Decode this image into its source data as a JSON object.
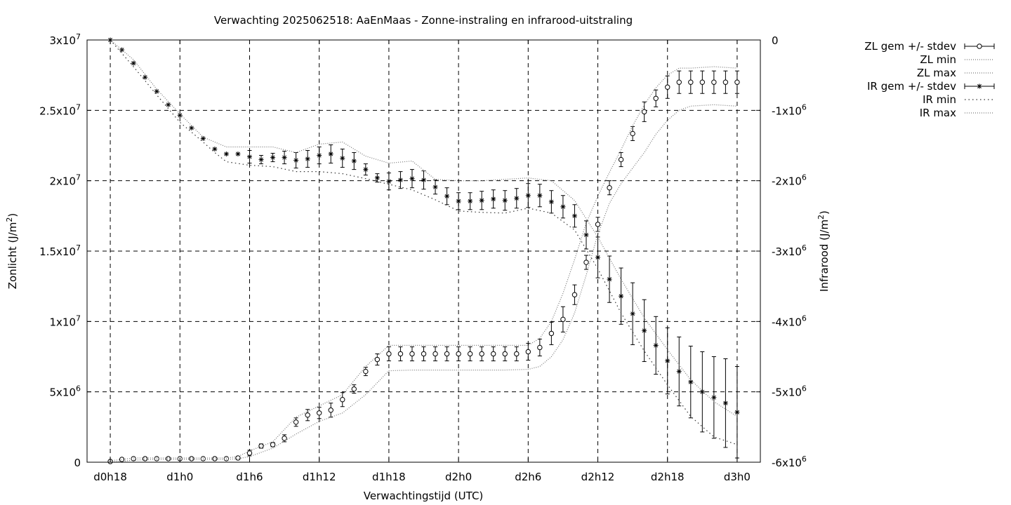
{
  "chart_data": {
    "type": "line",
    "title": "Verwachting 2025062518: AaEnMaas - Zonne-instraling en infrarood-uitstraling",
    "xlabel": "Verwachtingstijd (UTC)",
    "ylabel_left": "Zonlicht (J/m",
    "ylabel_right": "Infrarood (J/m",
    "ylabel_sup": "2",
    "ylabel_close": ")",
    "x_ticks": [
      {
        "hours": 18,
        "label": "d0h18"
      },
      {
        "hours": 24,
        "label": "d1h0"
      },
      {
        "hours": 30,
        "label": "d1h6"
      },
      {
        "hours": 36,
        "label": "d1h12"
      },
      {
        "hours": 42,
        "label": "d1h18"
      },
      {
        "hours": 48,
        "label": "d2h0"
      },
      {
        "hours": 54,
        "label": "d2h6"
      },
      {
        "hours": 60,
        "label": "d2h12"
      },
      {
        "hours": 66,
        "label": "d2h18"
      },
      {
        "hours": 72,
        "label": "d3h0"
      }
    ],
    "xlim": [
      16,
      74
    ],
    "ylim_left": [
      0,
      30000000
    ],
    "ylim_right": [
      -6000000,
      0
    ],
    "y_ticks_left": [
      {
        "value": 0,
        "mant": "0",
        "exp": ""
      },
      {
        "value": 5000000,
        "mant": "5x10",
        "exp": "6"
      },
      {
        "value": 10000000,
        "mant": "1x10",
        "exp": "7"
      },
      {
        "value": 15000000,
        "mant": "1.5x10",
        "exp": "7"
      },
      {
        "value": 20000000,
        "mant": "2x10",
        "exp": "7"
      },
      {
        "value": 25000000,
        "mant": "2.5x10",
        "exp": "7"
      },
      {
        "value": 30000000,
        "mant": "3x10",
        "exp": "7"
      }
    ],
    "y_ticks_right": [
      {
        "value": 0,
        "mant": "0",
        "exp": ""
      },
      {
        "value": -1000000,
        "mant": "-1x10",
        "exp": "6"
      },
      {
        "value": -2000000,
        "mant": "-2x10",
        "exp": "6"
      },
      {
        "value": -3000000,
        "mant": "-3x10",
        "exp": "6"
      },
      {
        "value": -4000000,
        "mant": "-4x10",
        "exp": "6"
      },
      {
        "value": -5000000,
        "mant": "-5x10",
        "exp": "6"
      },
      {
        "value": -6000000,
        "mant": "-6x10",
        "exp": "6"
      }
    ],
    "grid": true,
    "legend_position": "outside-top-right",
    "series": [
      {
        "name": "ZL gem +/- stdev",
        "axis": "left",
        "marker": "circle",
        "x": [
          18,
          19,
          20,
          21,
          22,
          23,
          24,
          25,
          26,
          27,
          28,
          29,
          30,
          31,
          32,
          33,
          34,
          35,
          36,
          37,
          38,
          39,
          40,
          41,
          42,
          43,
          44,
          45,
          46,
          47,
          48,
          49,
          50,
          51,
          52,
          53,
          54,
          55,
          56,
          57,
          58,
          59,
          60,
          61,
          62,
          63,
          64,
          65,
          66,
          67,
          68,
          69,
          70,
          71,
          72
        ],
        "y": [
          50000,
          200000,
          250000,
          250000,
          250000,
          250000,
          250000,
          250000,
          250000,
          250000,
          250000,
          300000,
          650000,
          1150000,
          1250000,
          1700000,
          2850000,
          3350000,
          3500000,
          3700000,
          4450000,
          5200000,
          6450000,
          7300000,
          7700000,
          7700000,
          7700000,
          7700000,
          7700000,
          7700000,
          7700000,
          7700000,
          7700000,
          7700000,
          7700000,
          7700000,
          7850000,
          8150000,
          9150000,
          10150000,
          11900000,
          14200000,
          16900000,
          19500000,
          21500000,
          23350000,
          24900000,
          25850000,
          26650000,
          27000000,
          27000000,
          27000000,
          27000000,
          27000000,
          27000000
        ],
        "stdev": [
          30000,
          50000,
          50000,
          50000,
          50000,
          50000,
          50000,
          50000,
          50000,
          50000,
          50000,
          100000,
          200000,
          150000,
          150000,
          250000,
          300000,
          400000,
          400000,
          500000,
          500000,
          300000,
          300000,
          400000,
          500000,
          500000,
          500000,
          500000,
          500000,
          500000,
          500000,
          500000,
          500000,
          500000,
          500000,
          500000,
          600000,
          600000,
          800000,
          900000,
          700000,
          500000,
          500000,
          500000,
          500000,
          500000,
          700000,
          600000,
          800000,
          800000,
          800000,
          800000,
          800000,
          800000,
          800000
        ]
      },
      {
        "name": "ZL min",
        "axis": "left",
        "style": "dotted",
        "x": [
          18,
          20,
          22,
          24,
          26,
          28,
          29,
          30,
          32,
          34,
          36,
          38,
          40,
          42,
          44,
          46,
          48,
          50,
          52,
          54,
          55,
          56,
          57,
          58,
          59,
          60,
          61,
          62,
          63,
          64,
          65,
          66,
          67,
          68,
          70,
          72
        ],
        "y": [
          0,
          150000,
          200000,
          200000,
          200000,
          200000,
          250000,
          400000,
          1000000,
          2000000,
          2900000,
          3500000,
          4800000,
          6500000,
          6550000,
          6550000,
          6550000,
          6550000,
          6550000,
          6600000,
          6800000,
          7500000,
          8700000,
          10600000,
          13300000,
          16200000,
          18400000,
          19800000,
          20900000,
          22000000,
          23300000,
          24300000,
          25000000,
          25300000,
          25400000,
          25300000
        ]
      },
      {
        "name": "ZL max",
        "axis": "left",
        "style": "dotted",
        "x": [
          18,
          20,
          22,
          24,
          26,
          28,
          29,
          30,
          32,
          34,
          36,
          38,
          40,
          42,
          44,
          46,
          48,
          50,
          52,
          54,
          55,
          56,
          57,
          58,
          59,
          60,
          61,
          62,
          63,
          64,
          65,
          66,
          67,
          68,
          70,
          72
        ],
        "y": [
          100000,
          300000,
          300000,
          300000,
          300000,
          300000,
          400000,
          800000,
          1450000,
          3200000,
          4000000,
          4800000,
          6800000,
          8300000,
          8300000,
          8300000,
          8300000,
          8300000,
          8300000,
          8300000,
          8800000,
          10000000,
          12000000,
          14400000,
          17000000,
          18900000,
          20600000,
          22200000,
          23900000,
          25400000,
          26600000,
          27500000,
          28000000,
          28000000,
          28100000,
          28000000
        ]
      },
      {
        "name": "IR gem +/- stdev",
        "axis": "right",
        "marker": "star",
        "x": [
          18,
          19,
          20,
          21,
          22,
          23,
          24,
          25,
          26,
          27,
          28,
          29,
          30,
          31,
          32,
          33,
          34,
          35,
          36,
          37,
          38,
          39,
          40,
          41,
          42,
          43,
          44,
          45,
          46,
          47,
          48,
          49,
          50,
          51,
          52,
          53,
          54,
          55,
          56,
          57,
          58,
          59,
          60,
          61,
          62,
          63,
          64,
          65,
          66,
          67,
          68,
          69,
          70,
          71,
          72
        ],
        "y": [
          0,
          -140000,
          -330000,
          -530000,
          -730000,
          -920000,
          -1070000,
          -1250000,
          -1400000,
          -1550000,
          -1620000,
          -1620000,
          -1660000,
          -1700000,
          -1670000,
          -1670000,
          -1710000,
          -1690000,
          -1640000,
          -1620000,
          -1680000,
          -1720000,
          -1840000,
          -1960000,
          -2010000,
          -1990000,
          -1970000,
          -1990000,
          -2090000,
          -2220000,
          -2290000,
          -2290000,
          -2280000,
          -2260000,
          -2280000,
          -2250000,
          -2210000,
          -2210000,
          -2300000,
          -2370000,
          -2500000,
          -2770000,
          -3090000,
          -3400000,
          -3640000,
          -3890000,
          -4130000,
          -4340000,
          -4560000,
          -4710000,
          -4860000,
          -5000000,
          -5080000,
          -5160000,
          -5290000
        ],
        "stdev": [
          0,
          0,
          0,
          0,
          0,
          0,
          0,
          0,
          0,
          0,
          0,
          0,
          90000,
          60000,
          60000,
          90000,
          110000,
          120000,
          120000,
          130000,
          130000,
          120000,
          80000,
          60000,
          120000,
          120000,
          130000,
          130000,
          100000,
          120000,
          120000,
          120000,
          130000,
          130000,
          140000,
          140000,
          170000,
          160000,
          160000,
          160000,
          160000,
          200000,
          290000,
          330000,
          400000,
          440000,
          440000,
          410000,
          470000,
          490000,
          510000,
          570000,
          580000,
          630000,
          650000
        ]
      },
      {
        "name": "IR min",
        "axis": "right",
        "style": "dotted",
        "x": [
          18,
          20,
          22,
          24,
          26,
          27,
          28,
          30,
          32,
          34,
          36,
          38,
          40,
          42,
          44,
          46,
          48,
          50,
          52,
          54,
          56,
          58,
          60,
          62,
          64,
          66,
          68,
          70,
          72
        ],
        "y": [
          0,
          -380000,
          -780000,
          -1170000,
          -1450000,
          -1600000,
          -1730000,
          -1780000,
          -1800000,
          -1870000,
          -1870000,
          -1900000,
          -1970000,
          -2050000,
          -2130000,
          -2270000,
          -2430000,
          -2450000,
          -2460000,
          -2390000,
          -2460000,
          -2700000,
          -3250000,
          -3880000,
          -4420000,
          -4900000,
          -5350000,
          -5640000,
          -5750000
        ]
      },
      {
        "name": "IR max",
        "axis": "right",
        "style": "dotted",
        "x": [
          18,
          20,
          22,
          24,
          26,
          28,
          30,
          32,
          34,
          36,
          38,
          40,
          42,
          44,
          46,
          48,
          50,
          52,
          54,
          56,
          58,
          60,
          62,
          64,
          66,
          68,
          70,
          72
        ],
        "y": [
          0,
          -280000,
          -700000,
          -1050000,
          -1380000,
          -1520000,
          -1520000,
          -1520000,
          -1600000,
          -1480000,
          -1450000,
          -1650000,
          -1750000,
          -1720000,
          -1980000,
          -2000000,
          -2000000,
          -1980000,
          -1960000,
          -2000000,
          -2280000,
          -2800000,
          -3400000,
          -3950000,
          -4400000,
          -4830000,
          -5140000,
          -5350000
        ]
      }
    ]
  }
}
